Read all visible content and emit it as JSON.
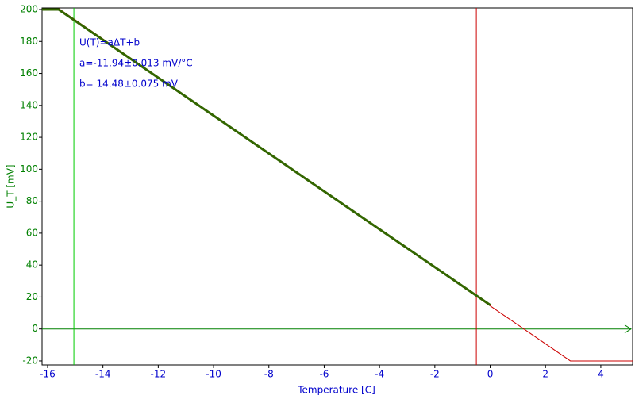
{
  "chart_data": {
    "type": "line",
    "x_label": "Temperature [C]",
    "y_label": "U_T [mV]",
    "annotations": [
      "U(T)=aΔT+b",
      "a=-11.94±0.013 mV/°C",
      "b= 14.48±0.075 mV"
    ],
    "xlim": [
      -16.2,
      5.15
    ],
    "ylim": [
      -22.5,
      201
    ],
    "xticks": [
      -16,
      -14,
      -12,
      -10,
      -8,
      -6,
      -4,
      -2,
      0,
      2,
      4
    ],
    "yticks": [
      -20,
      0,
      20,
      40,
      60,
      80,
      100,
      120,
      140,
      160,
      180,
      200
    ],
    "series": [
      {
        "color": "#cc0000",
        "x": [
          -15.6,
          0,
          2.9,
          5.15
        ],
        "values": [
          200.7,
          14.48,
          -20,
          -20
        ]
      },
      {
        "color": "#336600",
        "x": [
          -16.2,
          -15.6,
          0
        ],
        "values": [
          200,
          200,
          15
        ]
      }
    ],
    "vlines": [
      {
        "x": -15.05,
        "color": "#00cc00"
      },
      {
        "x": -0.5,
        "color": "#cc0000"
      }
    ],
    "hlines": [
      {
        "y": 0,
        "color": "#008000"
      }
    ],
    "ytick_color": "#008000",
    "xtick_color": "#0000cc",
    "annotation_color": "#0000cc"
  }
}
